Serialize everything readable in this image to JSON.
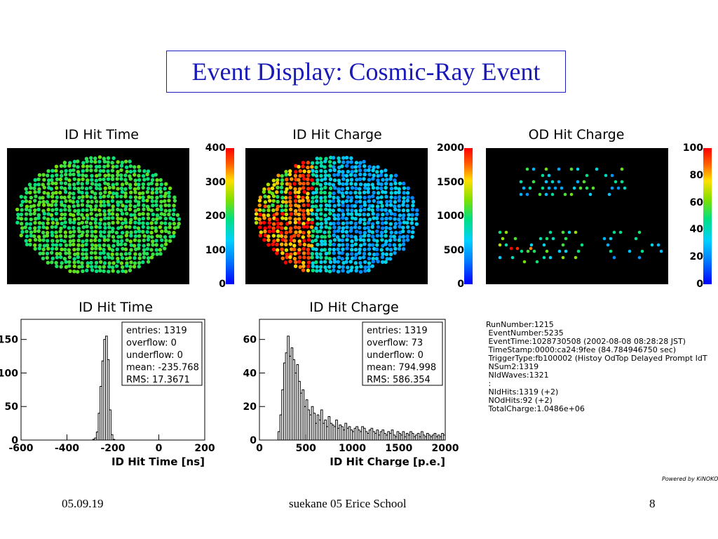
{
  "slide": {
    "title": "Event Display: Cosmic-Ray Event",
    "footer_left": "05.09.19",
    "footer_center": "suekane 05 Erice School",
    "footer_right": "8",
    "powered_by": "Powered by KiNOKO"
  },
  "displays": [
    {
      "title": "ID Hit Time",
      "colorbar_labels": [
        "400",
        "300",
        "200",
        "100",
        "0"
      ]
    },
    {
      "title": "ID Hit Charge",
      "colorbar_labels": [
        "2000",
        "1500",
        "1000",
        "500",
        "0"
      ]
    },
    {
      "title": "OD Hit Charge",
      "colorbar_labels": [
        "100",
        "80",
        "60",
        "40",
        "20",
        "0"
      ]
    }
  ],
  "event_info": [
    "RunNumber:1215",
    " EventNumber:5235",
    " EventTime:1028730508 (2002-08-08 08:28:28 JST)",
    " TimeStamp:0000:ca24:9fee (84.784946750 sec)",
    " TriggerType:fb100002 (Histoy OdTop Delayed Prompt IdT",
    " NSum2:1319",
    " NIdWaves:1321",
    " :",
    " NIdHits:1319 (+2)",
    " NOdHits:92 (+2)",
    " TotalCharge:1.0486e+06"
  ],
  "chart_data": [
    {
      "type": "histogram",
      "title": "ID Hit Time",
      "xlabel": "ID Hit Time [ns]",
      "xlim": [
        -600,
        200
      ],
      "ylim": [
        0,
        180
      ],
      "xticks": [
        -600,
        -400,
        -200,
        0,
        200
      ],
      "yticks": [
        0,
        50,
        100,
        150
      ],
      "stats": [
        {
          "name": "entries",
          "value": "1319"
        },
        {
          "name": "overflow",
          "value": "0"
        },
        {
          "name": "underflow",
          "value": "0"
        },
        {
          "name": "mean",
          "value": "-235.768"
        },
        {
          "name": "RMS",
          "value": "17.3671"
        }
      ],
      "bin_width": 8,
      "bins_x": [
        -288,
        -280,
        -272,
        -264,
        -256,
        -248,
        -240,
        -232,
        -224,
        -216,
        -208,
        -200
      ],
      "bins_y": [
        1,
        3,
        12,
        40,
        80,
        118,
        150,
        155,
        120,
        45,
        8,
        1
      ]
    },
    {
      "type": "histogram",
      "title": "ID Hit Charge",
      "xlabel": "ID Hit Charge [p.e.]",
      "xlim": [
        0,
        2000
      ],
      "ylim": [
        0,
        72
      ],
      "xticks": [
        0,
        500,
        1000,
        1500,
        2000
      ],
      "yticks": [
        0,
        20,
        40,
        60
      ],
      "stats": [
        {
          "name": "entries",
          "value": "1319"
        },
        {
          "name": "overflow",
          "value": "73"
        },
        {
          "name": "underflow",
          "value": "0"
        },
        {
          "name": "mean",
          "value": "794.998"
        },
        {
          "name": "RMS",
          "value": "586.354"
        }
      ],
      "bin_width": 20,
      "bins_x": [
        200,
        220,
        240,
        260,
        280,
        300,
        320,
        340,
        360,
        380,
        400,
        420,
        440,
        460,
        480,
        500,
        520,
        540,
        560,
        580,
        600,
        620,
        640,
        660,
        680,
        700,
        720,
        740,
        760,
        780,
        800,
        820,
        840,
        860,
        880,
        900,
        920,
        940,
        960,
        980,
        1000,
        1020,
        1040,
        1060,
        1080,
        1100,
        1120,
        1140,
        1160,
        1180,
        1200,
        1220,
        1240,
        1260,
        1280,
        1300,
        1320,
        1340,
        1360,
        1380,
        1400,
        1420,
        1440,
        1460,
        1480,
        1500,
        1520,
        1540,
        1560,
        1580,
        1600,
        1620,
        1640,
        1660,
        1680,
        1700,
        1720,
        1740,
        1760,
        1780,
        1800,
        1820,
        1840,
        1860,
        1880,
        1900,
        1920,
        1940,
        1960,
        1980
      ],
      "bins_y": [
        5,
        15,
        30,
        46,
        52,
        62,
        50,
        55,
        48,
        40,
        45,
        35,
        28,
        30,
        20,
        24,
        18,
        15,
        20,
        16,
        10,
        15,
        12,
        18,
        10,
        12,
        8,
        14,
        10,
        9,
        8,
        12,
        7,
        9,
        8,
        6,
        10,
        7,
        8,
        6,
        5,
        7,
        8,
        6,
        5,
        8,
        7,
        5,
        4,
        6,
        7,
        5,
        4,
        6,
        3,
        5,
        6,
        4,
        3,
        5,
        4,
        6,
        3,
        2,
        5,
        4,
        3,
        5,
        2,
        4,
        3,
        5,
        4,
        2,
        3,
        4,
        2,
        5,
        3,
        2,
        4,
        3,
        2,
        3,
        4,
        2,
        3,
        2,
        4,
        3
      ]
    }
  ]
}
